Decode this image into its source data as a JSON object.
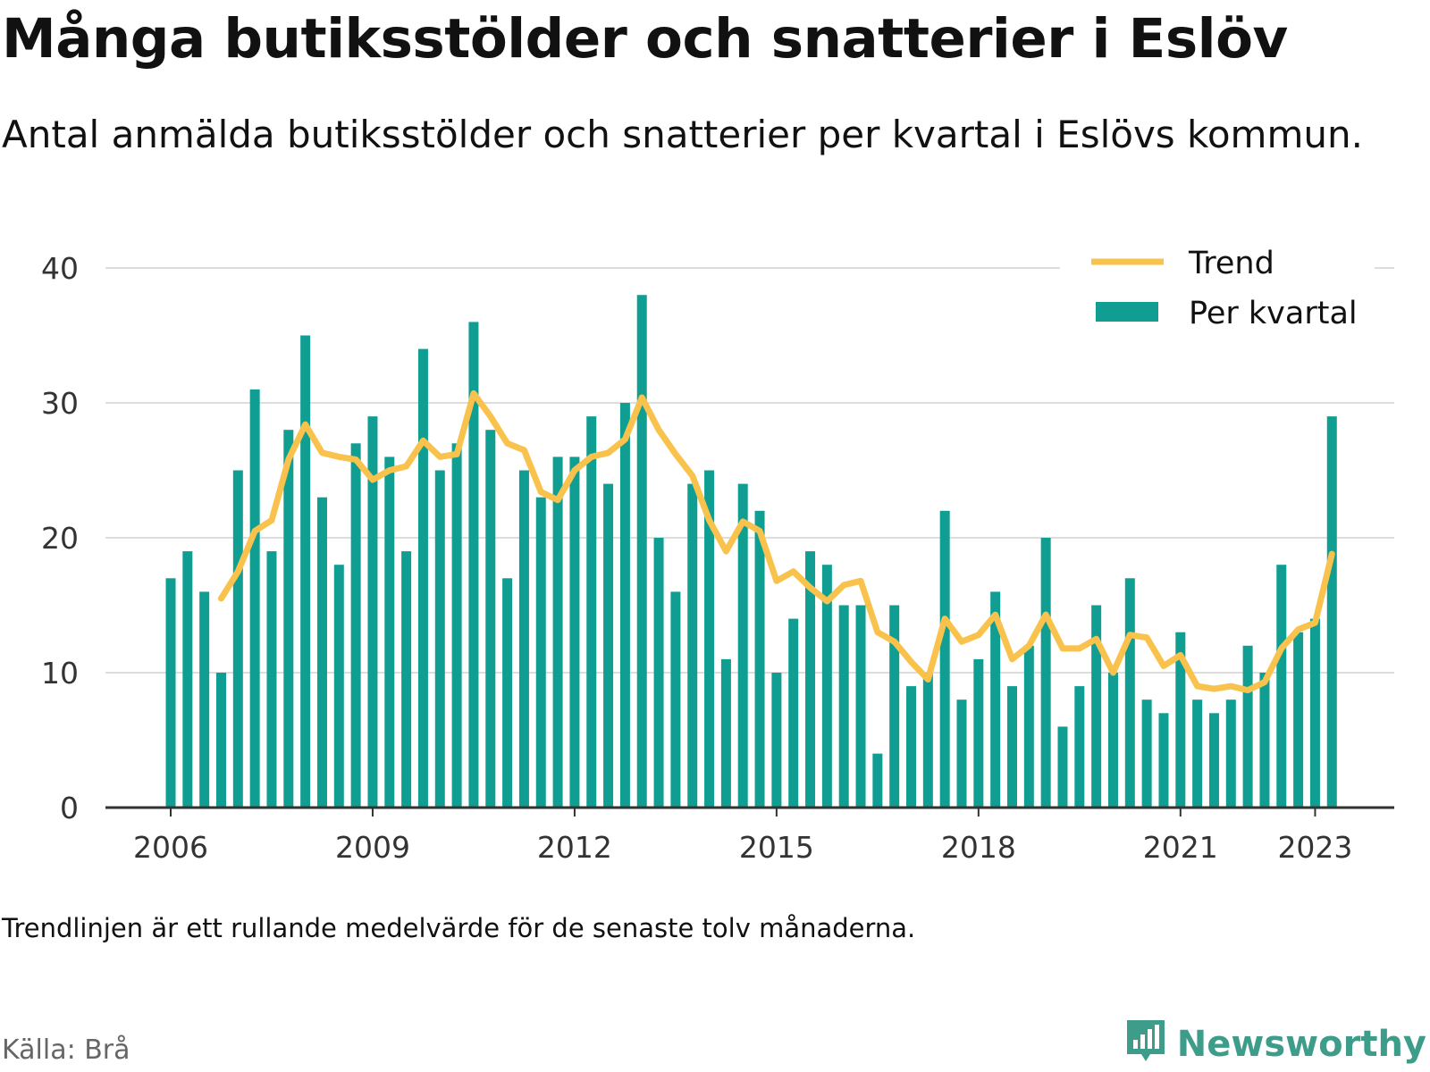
{
  "title": "Många butiksstölder och snatterier i Eslöv",
  "subtitle": "Antal anmälda butiksstölder och snatterier per kvartal i Eslövs kommun.",
  "note": "Trendlinjen är ett rullande medelvärde för de senaste tolv månaderna.",
  "source": "Källa: Brå",
  "brand": {
    "name": "Newsworthy",
    "icon": "newsworthy-logo-icon"
  },
  "colors": {
    "bars": "#109e92",
    "trend": "#f9c24d",
    "grid": "#dddddd",
    "axis": "#333333",
    "brand": "#3d9c8a"
  },
  "chart_data": {
    "type": "bar",
    "x_start": "2006 Q1",
    "x_tick_labels": [
      "2006",
      "2009",
      "2012",
      "2015",
      "2018",
      "2021",
      "2023"
    ],
    "y_tick_labels": [
      "0",
      "10",
      "20",
      "30",
      "40"
    ],
    "ylim": [
      0,
      40
    ],
    "grid": true,
    "legend_position": "top-right",
    "series": [
      {
        "name": "Per kvartal",
        "type": "bar",
        "values": [
          17,
          19,
          16,
          10,
          25,
          31,
          19,
          28,
          35,
          23,
          18,
          27,
          29,
          26,
          19,
          34,
          25,
          27,
          36,
          28,
          17,
          25,
          23,
          26,
          26,
          29,
          24,
          30,
          38,
          20,
          16,
          24,
          25,
          11,
          24,
          22,
          10,
          14,
          19,
          18,
          15,
          15,
          4,
          15,
          9,
          10,
          22,
          8,
          11,
          16,
          9,
          12,
          20,
          6,
          9,
          15,
          10,
          17,
          8,
          7,
          13,
          8,
          7,
          8,
          12,
          10,
          18,
          13,
          14,
          29
        ]
      },
      {
        "name": "Trend",
        "type": "line",
        "start_index": 3,
        "values": [
          15.5,
          17.5,
          20.5,
          21.3,
          25.8,
          28.4,
          26.3,
          26.0,
          25.8,
          24.3,
          25.0,
          25.3,
          27.2,
          26.0,
          26.2,
          30.7,
          29.0,
          27.0,
          26.5,
          23.4,
          22.8,
          25.0,
          26.0,
          26.3,
          27.3,
          30.4,
          28.0,
          26.2,
          24.6,
          21.3,
          19.0,
          21.2,
          20.5,
          16.8,
          17.5,
          16.3,
          15.3,
          16.5,
          16.8,
          13.0,
          12.3,
          10.8,
          9.5,
          14.0,
          12.3,
          12.8,
          14.3,
          11.0,
          12.0,
          14.3,
          11.8,
          11.8,
          12.5,
          10.0,
          12.8,
          12.6,
          10.5,
          11.3,
          9.0,
          8.8,
          9.0,
          8.7,
          9.3,
          11.8,
          13.2,
          13.7,
          18.8
        ]
      }
    ]
  }
}
